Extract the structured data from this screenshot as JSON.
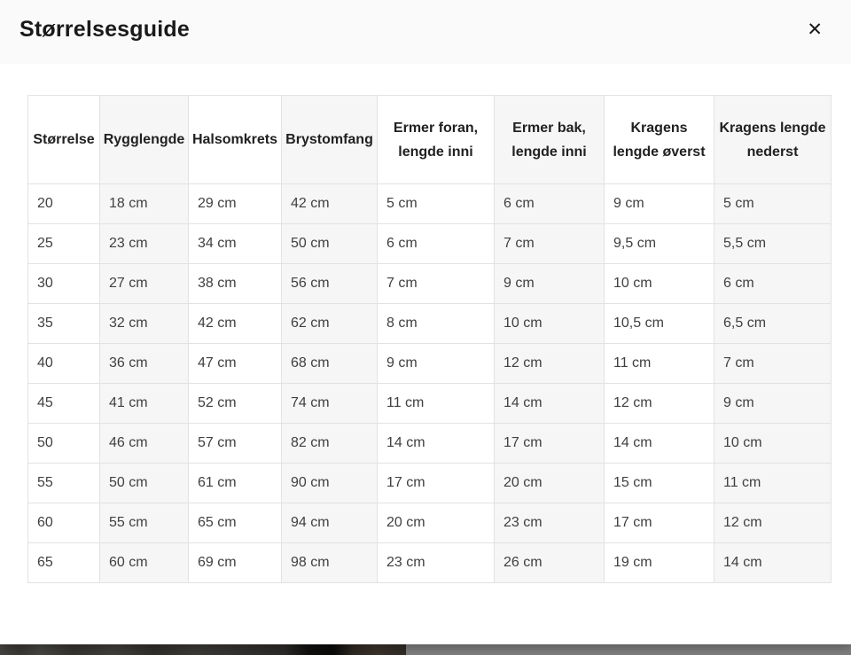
{
  "modal": {
    "title": "Størrelsesguide",
    "close_icon": "✕"
  },
  "table": {
    "headers": [
      "Størrelse",
      "Rygglengde",
      "Halsomkrets",
      "Brystomfang",
      "Ermer foran,\nlengde inni",
      "Ermer bak,\nlengde inni",
      "Kragens\nlengde øverst",
      "Kragens lengde\nnederst"
    ],
    "rows": [
      [
        "20",
        "18 cm",
        "29 cm",
        "42 cm",
        "5 cm",
        "6 cm",
        "9 cm",
        "5 cm"
      ],
      [
        "25",
        "23 cm",
        "34 cm",
        "50 cm",
        "6 cm",
        "7 cm",
        "9,5 cm",
        "5,5 cm"
      ],
      [
        "30",
        "27 cm",
        "38 cm",
        "56 cm",
        "7 cm",
        "9 cm",
        "10 cm",
        "6 cm"
      ],
      [
        "35",
        "32 cm",
        "42 cm",
        "62 cm",
        "8 cm",
        "10 cm",
        "10,5 cm",
        "6,5 cm"
      ],
      [
        "40",
        "36 cm",
        "47 cm",
        "68 cm",
        "9 cm",
        "12 cm",
        "11 cm",
        "7 cm"
      ],
      [
        "45",
        "41 cm",
        "52 cm",
        "74 cm",
        "11 cm",
        "14 cm",
        "12 cm",
        "9 cm"
      ],
      [
        "50",
        "46 cm",
        "57 cm",
        "82 cm",
        "14 cm",
        "17 cm",
        "14 cm",
        "10 cm"
      ],
      [
        "55",
        "50 cm",
        "61 cm",
        "90 cm",
        "17 cm",
        "20 cm",
        "15 cm",
        "11 cm"
      ],
      [
        "60",
        "55 cm",
        "65 cm",
        "94 cm",
        "20 cm",
        "23 cm",
        "17 cm",
        "12 cm"
      ],
      [
        "65",
        "60 cm",
        "69 cm",
        "98 cm",
        "23 cm",
        "26 cm",
        "19 cm",
        "14 cm"
      ]
    ]
  },
  "colors": {
    "header_band": "#fafafa",
    "shaded_column": "#f6f6f6",
    "table_border": "#e2e2e2",
    "header_text": "#212121",
    "cell_text": "#404040",
    "dim_overlay": "#7d7d7d"
  }
}
